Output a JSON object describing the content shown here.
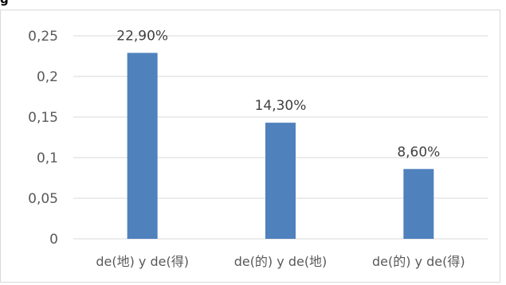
{
  "heading_fragment": "g",
  "chart_data": {
    "type": "bar",
    "categories": [
      "de(地) y de(得)",
      "de(的) y de(地)",
      "de(的) y de(得)"
    ],
    "values": [
      0.229,
      0.143,
      0.086
    ],
    "data_labels": [
      "22,90%",
      "14,30%",
      "8,60%"
    ],
    "yticks": [
      0,
      0.05,
      0.1,
      0.15,
      0.2,
      0.25
    ],
    "ytick_labels": [
      "0",
      "0,05",
      "0,1",
      "0,15",
      "0,2",
      "0,25"
    ],
    "ylim": [
      0,
      0.25
    ],
    "grid": true,
    "legend": "none",
    "bar_color": "#4f81bd",
    "grid_color": "#d9d9d9",
    "title": "",
    "xlabel": "",
    "ylabel": ""
  }
}
